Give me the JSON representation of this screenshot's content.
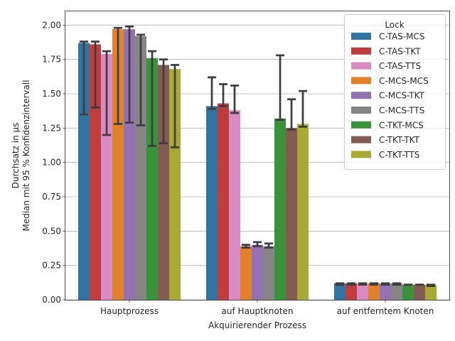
{
  "chart_data": {
    "type": "bar",
    "xlabel": "Akquirierender Prozess",
    "ylabel_lines": [
      "Durchsatz in µs",
      "Median mit 95 % Konfidenzintervall"
    ],
    "categories": [
      "Hauptprozess",
      "auf Hauptknoten",
      "auf entferntem Knoten"
    ],
    "ylim": [
      0,
      2.1
    ],
    "yticks": [
      "0.00",
      "0.25",
      "0.50",
      "0.75",
      "1.00",
      "1.25",
      "1.50",
      "1.75",
      "2.00"
    ],
    "grid": "horizontal",
    "legend": {
      "title": "Lock",
      "placement": "top-right"
    },
    "series": [
      {
        "name": "C-TAS-MCS",
        "color": "#3274a1",
        "values": [
          1.87,
          1.41,
          0.12
        ],
        "ci_low": [
          1.35,
          1.39,
          0.11
        ],
        "ci_high": [
          1.88,
          1.62,
          0.12
        ]
      },
      {
        "name": "C-TAS-TKT",
        "color": "#c03d3e",
        "values": [
          1.86,
          1.43,
          0.12
        ],
        "ci_low": [
          1.4,
          1.41,
          0.11
        ],
        "ci_high": [
          1.88,
          1.57,
          0.12
        ]
      },
      {
        "name": "C-TAS-TTS",
        "color": "#da8bc3",
        "values": [
          1.79,
          1.38,
          0.12
        ],
        "ci_low": [
          1.2,
          1.36,
          0.11
        ],
        "ci_high": [
          1.81,
          1.56,
          0.12
        ]
      },
      {
        "name": "C-MCS-MCS",
        "color": "#e1812c",
        "values": [
          1.97,
          0.39,
          0.12
        ],
        "ci_low": [
          1.28,
          0.38,
          0.11
        ],
        "ci_high": [
          1.98,
          0.4,
          0.12
        ]
      },
      {
        "name": "C-MCS-TKT",
        "color": "#9372b2",
        "values": [
          1.97,
          0.4,
          0.12
        ],
        "ci_low": [
          1.29,
          0.39,
          0.11
        ],
        "ci_high": [
          1.99,
          0.42,
          0.12
        ]
      },
      {
        "name": "C-MCS-TTS",
        "color": "#858585",
        "values": [
          1.92,
          0.39,
          0.12
        ],
        "ci_low": [
          1.27,
          0.38,
          0.11
        ],
        "ci_high": [
          1.93,
          0.41,
          0.12
        ]
      },
      {
        "name": "C-TKT-MCS",
        "color": "#3a923a",
        "values": [
          1.76,
          1.32,
          0.11
        ],
        "ci_low": [
          1.12,
          1.31,
          0.11
        ],
        "ci_high": [
          1.81,
          1.78,
          0.11
        ]
      },
      {
        "name": "C-TKT-TKT",
        "color": "#845b53",
        "values": [
          1.71,
          1.25,
          0.11
        ],
        "ci_low": [
          1.14,
          1.24,
          0.11
        ],
        "ci_high": [
          1.75,
          1.46,
          0.11
        ]
      },
      {
        "name": "C-TKT-TTS",
        "color": "#a9aa35",
        "values": [
          1.68,
          1.28,
          0.11
        ],
        "ci_low": [
          1.11,
          1.26,
          0.1
        ],
        "ci_high": [
          1.71,
          1.52,
          0.11
        ]
      }
    ]
  }
}
